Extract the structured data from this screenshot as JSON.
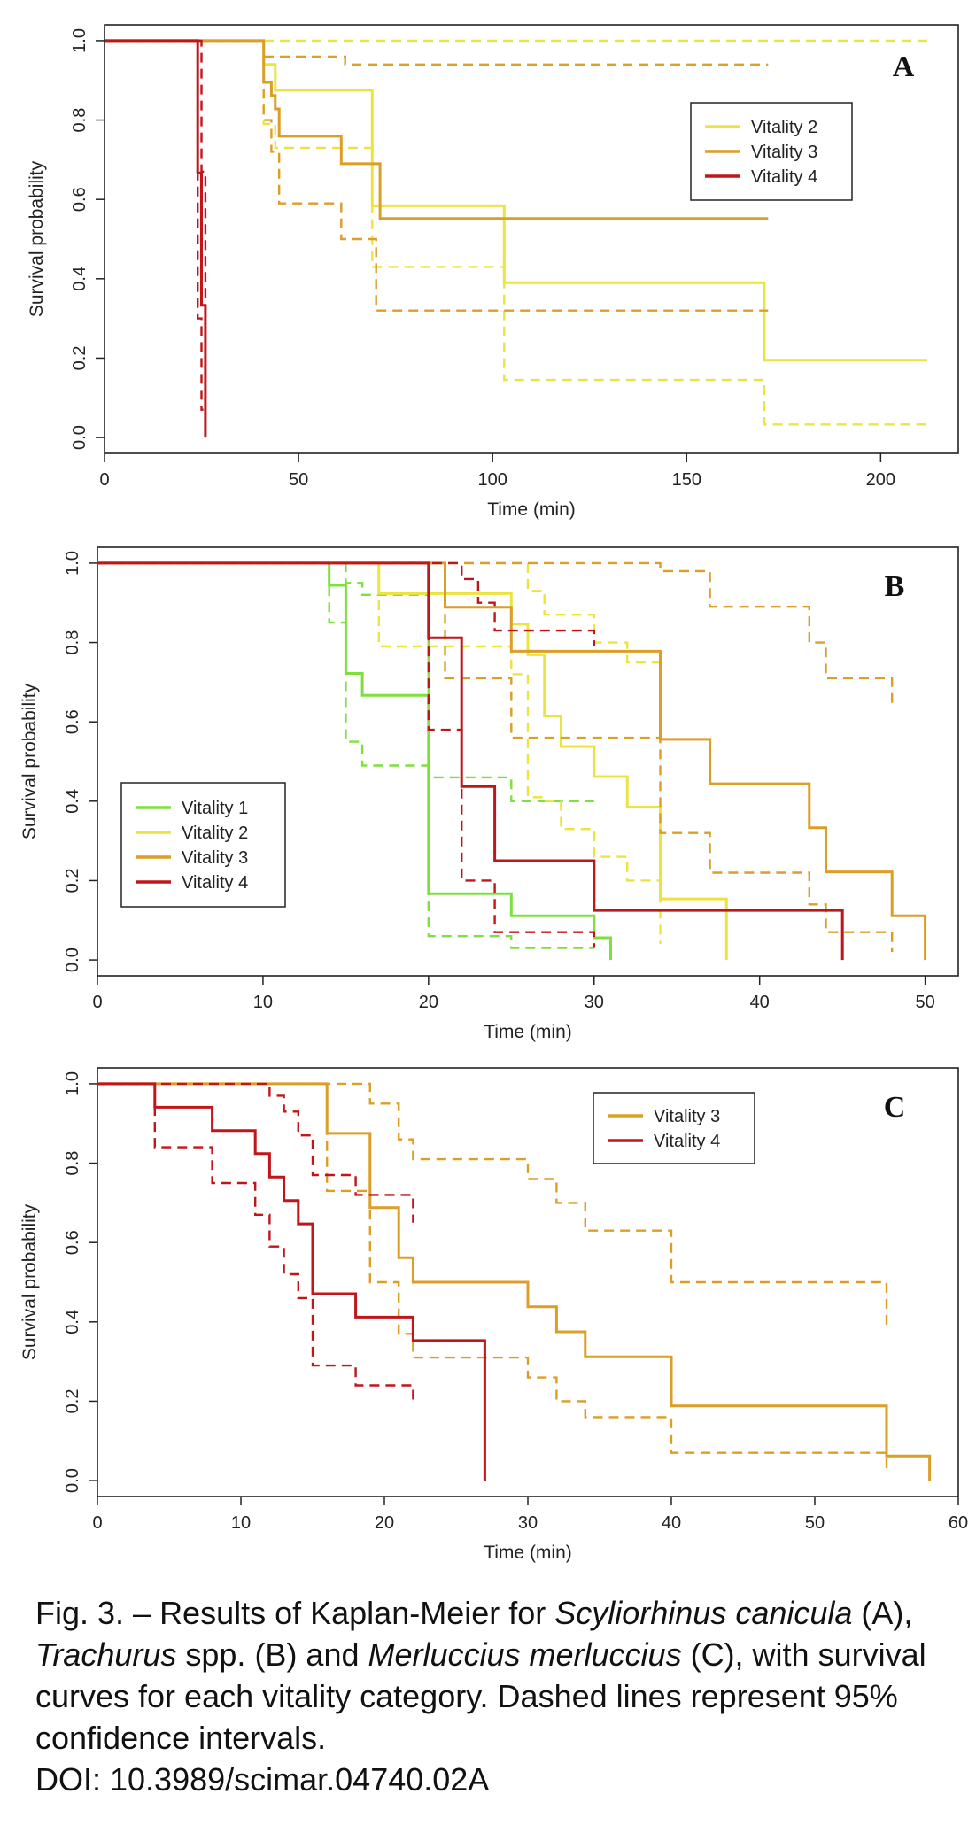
{
  "caption": {
    "prefix": "Fig. 3. – Results of Kaplan-Meier for ",
    "species_a": "Scyliorhinus canicula",
    "part_a": " (A), ",
    "species_b": "Trachurus",
    "part_b": " spp. (B) and ",
    "species_c": "Merluccius merluccius",
    "part_c": " (C), with survival curves for each vitality category. Dashed lines represent 95% confidence intervals.",
    "doi": "DOI: 10.3989/scimar.04740.02A"
  },
  "colors": {
    "Vitality 1": "#7ee03c",
    "Vitality 2": "#ece43e",
    "Vitality 3": "#dc9e27",
    "Vitality 4": "#c0161a"
  },
  "chart_data": [
    {
      "type": "line",
      "step": true,
      "panel": "A",
      "xlabel": "Time (min)",
      "ylabel": "Survival probability",
      "xlim": [
        0,
        220
      ],
      "ylim": [
        -0.04,
        1.04
      ],
      "xticks": [
        0,
        50,
        100,
        150,
        200
      ],
      "yticks": [
        0.0,
        0.2,
        0.4,
        0.6,
        0.8,
        1.0
      ],
      "legend_position": "top-right",
      "series": [
        {
          "name": "Vitality 2",
          "color": "#ece43e",
          "x": [
            0,
            41,
            44,
            69,
            103,
            170,
            212
          ],
          "y": [
            1.0,
            0.94,
            0.875,
            0.584,
            0.39,
            0.195,
            0.195
          ],
          "ci_lower": {
            "x": [
              0,
              41,
              44,
              69,
              103,
              170,
              212
            ],
            "y": [
              1.0,
              0.79,
              0.73,
              0.43,
              0.145,
              0.033,
              0.033
            ]
          },
          "ci_upper": {
            "x": [
              0,
              212
            ],
            "y": [
              1.0,
              1.0
            ]
          }
        },
        {
          "name": "Vitality 3",
          "color": "#dc9e27",
          "x": [
            0,
            41,
            43,
            44,
            45,
            61,
            71,
            171
          ],
          "y": [
            1.0,
            0.895,
            0.862,
            0.828,
            0.759,
            0.69,
            0.552,
            0.552
          ],
          "ci_lower": {
            "x": [
              0,
              41,
              43,
              45,
              61,
              70,
              71,
              171
            ],
            "y": [
              1.0,
              0.8,
              0.72,
              0.59,
              0.5,
              0.32,
              0.32,
              0.32
            ]
          },
          "ci_upper": {
            "x": [
              0,
              41,
              61,
              62,
              171
            ],
            "y": [
              1.0,
              0.96,
              0.96,
              0.94,
              0.94
            ]
          }
        },
        {
          "name": "Vitality 4",
          "color": "#c0161a",
          "x": [
            0,
            24,
            25,
            26
          ],
          "y": [
            1.0,
            0.667,
            0.333,
            0.0
          ],
          "ci_lower": {
            "x": [
              0,
              24,
              25,
              25.5
            ],
            "y": [
              1.0,
              0.3,
              0.07,
              0.07
            ]
          },
          "ci_upper": {
            "x": [
              24,
              25,
              26
            ],
            "y": [
              1.0,
              0.67,
              0.34
            ]
          }
        }
      ]
    },
    {
      "type": "line",
      "step": true,
      "panel": "B",
      "xlabel": "Time (min)",
      "ylabel": "Survival probability",
      "xlim": [
        0,
        52
      ],
      "ylim": [
        -0.04,
        1.04
      ],
      "xticks": [
        0,
        10,
        20,
        30,
        40,
        50
      ],
      "yticks": [
        0.0,
        0.2,
        0.4,
        0.6,
        0.8,
        1.0
      ],
      "legend_position": "bottom-left",
      "series": [
        {
          "name": "Vitality 1",
          "color": "#7ee03c",
          "x": [
            0,
            14,
            15,
            16,
            20,
            25,
            30,
            31
          ],
          "y": [
            1.0,
            0.944,
            0.722,
            0.667,
            0.167,
            0.111,
            0.056,
            0.0
          ],
          "ci_lower": {
            "x": [
              0,
              14,
              15,
              16,
              20,
              25,
              30
            ],
            "y": [
              1.0,
              0.85,
              0.55,
              0.49,
              0.06,
              0.03,
              0.03
            ]
          },
          "ci_upper": {
            "x": [
              14,
              15,
              16,
              20,
              25,
              30
            ],
            "y": [
              1.0,
              0.95,
              0.92,
              0.46,
              0.4,
              0.4
            ]
          }
        },
        {
          "name": "Vitality 2",
          "color": "#ece43e",
          "x": [
            0,
            17,
            25,
            26,
            27,
            28,
            30,
            32,
            34,
            38
          ],
          "y": [
            1.0,
            0.923,
            0.846,
            0.769,
            0.615,
            0.538,
            0.462,
            0.385,
            0.154,
            0.0
          ],
          "ci_lower": {
            "x": [
              0,
              17,
              25,
              26,
              27,
              28,
              30,
              32,
              34
            ],
            "y": [
              1.0,
              0.79,
              0.72,
              0.41,
              0.4,
              0.33,
              0.26,
              0.2,
              0.04
            ]
          },
          "ci_upper": {
            "x": [
              0,
              26,
              27,
              28,
              30,
              32,
              34
            ],
            "y": [
              1.0,
              0.93,
              0.87,
              0.87,
              0.8,
              0.75,
              0.57
            ]
          }
        },
        {
          "name": "Vitality 3",
          "color": "#dc9e27",
          "x": [
            0,
            21,
            25,
            34,
            37,
            43,
            44,
            48,
            50
          ],
          "y": [
            1.0,
            0.889,
            0.778,
            0.556,
            0.444,
            0.333,
            0.222,
            0.111,
            0.0
          ],
          "ci_lower": {
            "x": [
              0,
              21,
              25,
              34,
              37,
              43,
              44,
              48
            ],
            "y": [
              1.0,
              0.71,
              0.56,
              0.32,
              0.22,
              0.14,
              0.07,
              0.02
            ]
          },
          "ci_upper": {
            "x": [
              0,
              34,
              37,
              43,
              44,
              48
            ],
            "y": [
              1.0,
              0.98,
              0.89,
              0.8,
              0.71,
              0.64
            ]
          }
        },
        {
          "name": "Vitality 4",
          "color": "#c0161a",
          "x": [
            0,
            20,
            22,
            24,
            30,
            45
          ],
          "y": [
            1.0,
            0.812,
            0.437,
            0.25,
            0.125,
            0.0
          ],
          "ci_lower": {
            "x": [
              0,
              20,
              22,
              24,
              30
            ],
            "y": [
              1.0,
              0.58,
              0.2,
              0.07,
              0.03
            ]
          },
          "ci_upper": {
            "x": [
              0,
              22,
              23,
              24,
              30
            ],
            "y": [
              1.0,
              0.96,
              0.9,
              0.83,
              0.79
            ]
          }
        }
      ]
    },
    {
      "type": "line",
      "step": true,
      "panel": "C",
      "xlabel": "Time (min)",
      "ylabel": "Survival probability",
      "xlim": [
        0,
        60
      ],
      "ylim": [
        -0.04,
        1.04
      ],
      "xticks": [
        0,
        10,
        20,
        30,
        40,
        50,
        60
      ],
      "yticks": [
        0.0,
        0.2,
        0.4,
        0.6,
        0.8,
        1.0
      ],
      "legend_position": "top-right",
      "series": [
        {
          "name": "Vitality 3",
          "color": "#dc9e27",
          "x": [
            0,
            16,
            19,
            21,
            22,
            30,
            32,
            34,
            40,
            55,
            58
          ],
          "y": [
            1.0,
            0.875,
            0.688,
            0.562,
            0.5,
            0.438,
            0.375,
            0.312,
            0.188,
            0.062,
            0.0
          ],
          "ci_lower": {
            "x": [
              0,
              16,
              19,
              21,
              22,
              30,
              32,
              34,
              40,
              55
            ],
            "y": [
              1.0,
              0.73,
              0.5,
              0.37,
              0.31,
              0.26,
              0.2,
              0.16,
              0.07,
              0.02
            ]
          },
          "ci_upper": {
            "x": [
              0,
              19,
              21,
              22,
              30,
              32,
              34,
              40,
              55
            ],
            "y": [
              1.0,
              0.95,
              0.86,
              0.81,
              0.76,
              0.7,
              0.63,
              0.5,
              0.38
            ]
          }
        },
        {
          "name": "Vitality 4",
          "color": "#c0161a",
          "x": [
            0,
            4,
            8,
            11,
            12,
            13,
            14,
            15,
            18,
            22,
            27
          ],
          "y": [
            1.0,
            0.941,
            0.882,
            0.824,
            0.765,
            0.706,
            0.647,
            0.471,
            0.412,
            0.353,
            0.0
          ],
          "ci_lower": {
            "x": [
              0,
              4,
              8,
              11,
              12,
              13,
              14,
              15,
              18,
              22
            ],
            "y": [
              1.0,
              0.84,
              0.75,
              0.67,
              0.59,
              0.52,
              0.46,
              0.29,
              0.24,
              0.2
            ]
          },
          "ci_upper": {
            "x": [
              0,
              12,
              13,
              14,
              15,
              18,
              22
            ],
            "y": [
              1.0,
              0.97,
              0.93,
              0.87,
              0.77,
              0.72,
              0.65
            ]
          }
        }
      ]
    }
  ]
}
